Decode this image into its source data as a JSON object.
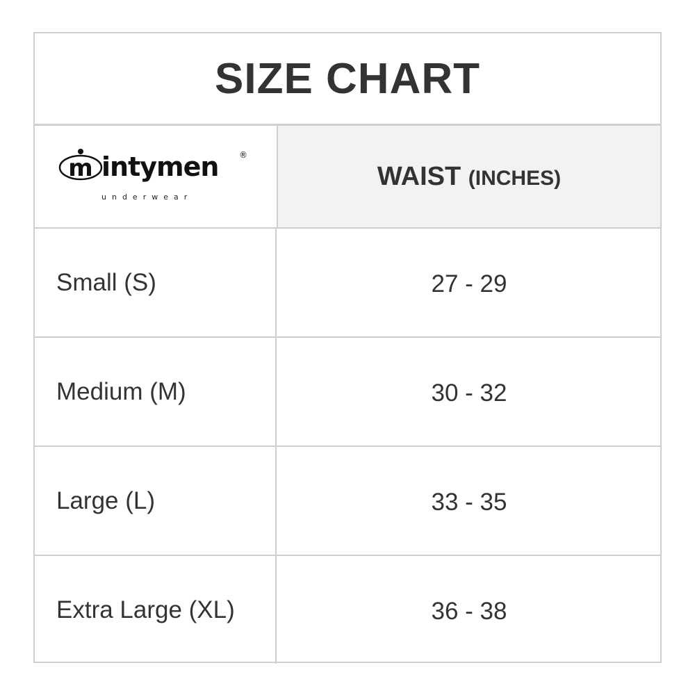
{
  "title": "SIZE CHART",
  "logo": {
    "brand": "intymen",
    "tagline": "underwear",
    "registered": "®"
  },
  "header": {
    "measure": "WAIST",
    "unit": "(INCHES)"
  },
  "rows": [
    {
      "size": "Small (S)",
      "waist": "27 - 29"
    },
    {
      "size": "Medium (M)",
      "waist": "30 - 32"
    },
    {
      "size": "Large (L)",
      "waist": "33 - 35"
    },
    {
      "size": "Extra Large (XL)",
      "waist": "36 - 38"
    }
  ],
  "colors": {
    "text": "#333333",
    "border": "#cfcfcf",
    "header_bg": "#f2f2f2"
  }
}
